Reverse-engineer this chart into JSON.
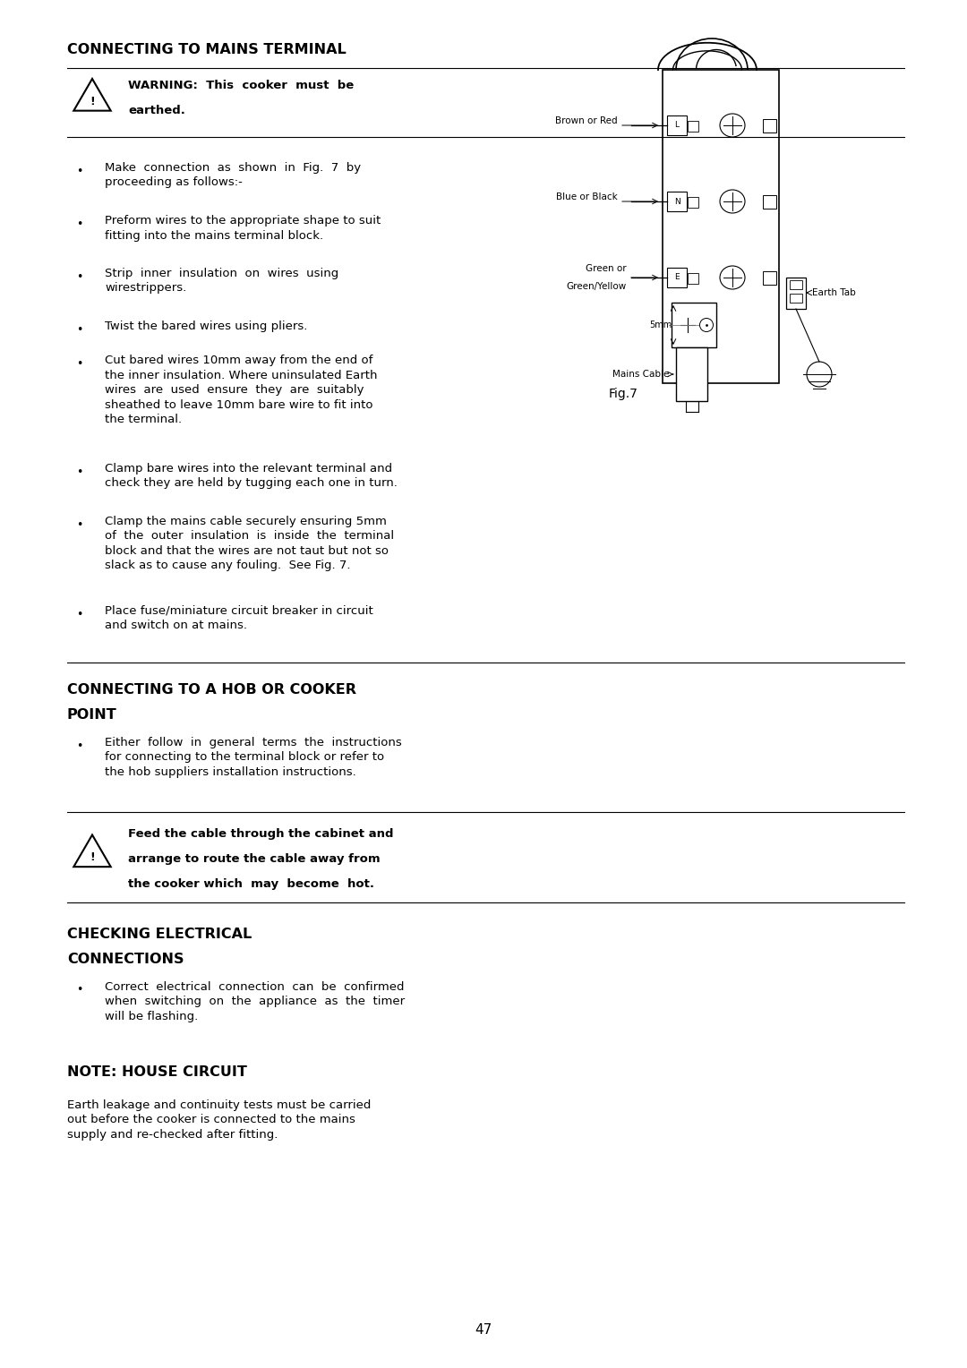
{
  "bg_color": "#ffffff",
  "page_number": "47",
  "section1_title": "CONNECTING TO MAINS TERMINAL",
  "warning1_line1": "WARNING:  This  cooker  must  be",
  "warning1_line2": "earthed.",
  "bullets1": [
    "Make  connection  as  shown  in  Fig.  7  by\nproceeding as follows:-",
    "Preform wires to the appropriate shape to suit\nfitting into the mains terminal block.",
    "Strip  inner  insulation  on  wires  using\nwirestrippers.",
    "Twist the bared wires using pliers.",
    "Cut bared wires 10mm away from the end of\nthe inner insulation. Where uninsulated Earth\nwires  are  used  ensure  they  are  suitably\nsheathed to leave 10mm bare wire to fit into\nthe terminal.",
    "Clamp bare wires into the relevant terminal and\ncheck they are held by tugging each one in turn.",
    "Clamp the mains cable securely ensuring 5mm\nof  the  outer  insulation  is  inside  the  terminal\nblock and that the wires are not taut but not so\nslack as to cause any fouling.  See Fig. 7.",
    "Place fuse/miniature circuit breaker in circuit\nand switch on at mains."
  ],
  "section2_title_line1": "CONNECTING TO A HOB OR COOKER",
  "section2_title_line2": "POINT",
  "bullets2": [
    "Either  follow  in  general  terms  the  instructions\nfor connecting to the terminal block or refer to\nthe hob suppliers installation instructions."
  ],
  "warning2_line1": "Feed the cable through the cabinet and",
  "warning2_line2": "arrange to route the cable away from",
  "warning2_line3": "the cooker which  may  become  hot.",
  "section3_title_line1": "CHECKING ELECTRICAL",
  "section3_title_line2": "CONNECTIONS",
  "bullets3": [
    "Correct  electrical  connection  can  be  confirmed\nwhen  switching  on  the  appliance  as  the  timer\nwill be flashing."
  ],
  "section4_title": "NOTE: HOUSE CIRCUIT",
  "note_text": "Earth leakage and continuity tests must be carried\nout before the cooker is connected to the mains\nsupply and re-checked after fitting.",
  "fig_label": "Fig.7"
}
